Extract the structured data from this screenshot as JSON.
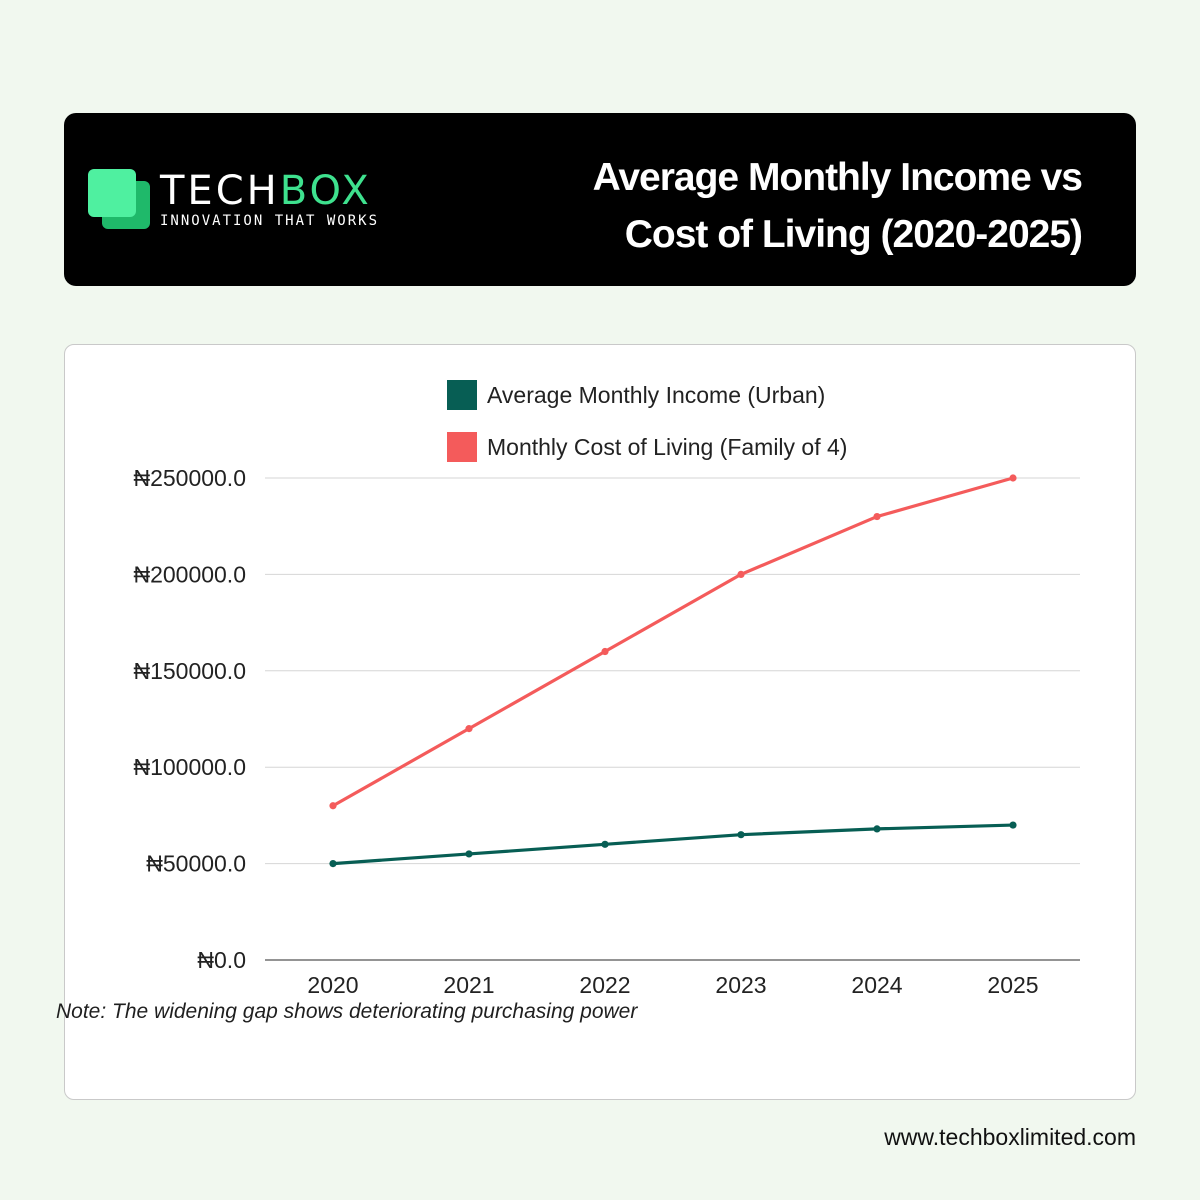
{
  "brand": {
    "name_part1": "TECH",
    "name_part2": "BOX",
    "tagline": "INNOVATION THAT WORKS",
    "accent_color": "#3ee18e"
  },
  "header": {
    "title_line1": "Average Monthly Income vs",
    "title_line2": "Cost of Living (2020-2025)"
  },
  "chart_data": {
    "type": "line",
    "x": [
      "2020",
      "2021",
      "2022",
      "2023",
      "2024",
      "2025"
    ],
    "series": [
      {
        "name": "Average Monthly Income (Urban)",
        "color": "#075e54",
        "values": [
          50000,
          55000,
          60000,
          65000,
          68000,
          70000
        ]
      },
      {
        "name": "Monthly Cost of Living (Family of 4)",
        "color": "#f45b5b",
        "values": [
          80000,
          120000,
          160000,
          200000,
          230000,
          250000
        ]
      }
    ],
    "ylim": [
      0,
      250000
    ],
    "yticks": [
      0,
      50000,
      100000,
      150000,
      200000,
      250000
    ],
    "ytick_labels": [
      "₦0.0",
      "₦50000.0",
      "₦100000.0",
      "₦150000.0",
      "₦200000.0",
      "₦250000.0"
    ],
    "grid": true,
    "legend_position": "top"
  },
  "note": "Note: The widening gap shows deteriorating purchasing power",
  "footer": {
    "url": "www.techboxlimited.com"
  }
}
